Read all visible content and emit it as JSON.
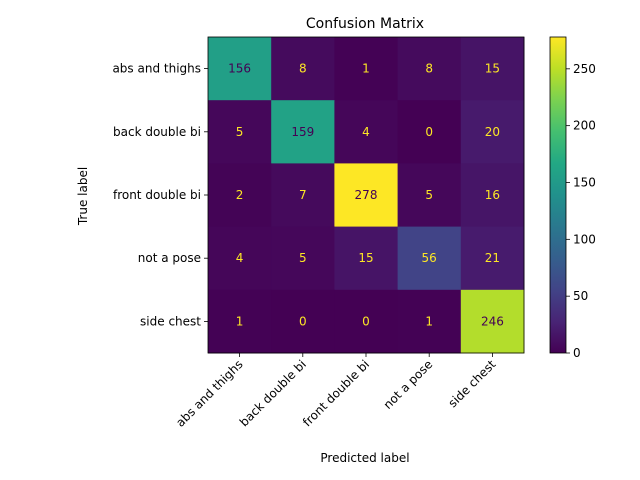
{
  "chart_data": {
    "type": "heatmap",
    "title": "Confusion Matrix",
    "xlabel": "Predicted label",
    "ylabel": "True label",
    "x_categories": [
      "abs and thighs",
      "back double bi",
      "front double bi",
      "not a pose",
      "side chest"
    ],
    "y_categories": [
      "abs and thighs",
      "back double bi",
      "front double bi",
      "not a pose",
      "side chest"
    ],
    "matrix": [
      [
        156,
        8,
        1,
        8,
        15
      ],
      [
        5,
        159,
        4,
        0,
        20
      ],
      [
        2,
        7,
        278,
        5,
        16
      ],
      [
        4,
        5,
        15,
        56,
        21
      ],
      [
        1,
        0,
        0,
        1,
        246
      ]
    ],
    "colormap": "viridis",
    "vmin": 0,
    "vmax": 278,
    "colorbar_ticks": [
      "0",
      "50",
      "100",
      "150",
      "200",
      "250"
    ],
    "text_color_dark_cell": "#fde725",
    "text_color_light_cell": "#440154",
    "grid": false
  }
}
